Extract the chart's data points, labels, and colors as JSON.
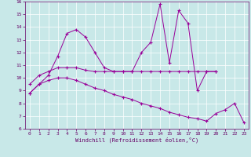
{
  "title": "",
  "xlabel": "Windchill (Refroidissement éolien,°C)",
  "bg_color": "#c8e8e8",
  "grid_color": "#ffffff",
  "line_color": "#990099",
  "x": [
    0,
    1,
    2,
    3,
    4,
    5,
    6,
    7,
    8,
    9,
    10,
    11,
    12,
    13,
    14,
    15,
    16,
    17,
    18,
    19,
    20,
    21,
    22,
    23
  ],
  "line1": [
    8.8,
    9.5,
    10.2,
    11.7,
    13.5,
    13.8,
    13.2,
    12.0,
    10.8,
    10.5,
    10.5,
    10.5,
    12.0,
    12.8,
    15.8,
    11.2,
    15.3,
    14.3,
    9.0,
    10.5,
    10.5,
    null,
    null,
    null
  ],
  "line2": [
    9.5,
    10.2,
    10.5,
    10.8,
    10.8,
    10.8,
    10.6,
    10.5,
    10.5,
    10.5,
    10.5,
    10.5,
    10.5,
    10.5,
    10.5,
    10.5,
    10.5,
    10.5,
    10.5,
    10.5,
    10.5,
    null,
    null,
    null
  ],
  "line3": [
    8.8,
    9.5,
    9.8,
    10.0,
    10.0,
    9.8,
    9.5,
    9.2,
    9.0,
    8.7,
    8.5,
    8.3,
    8.0,
    7.8,
    7.6,
    7.3,
    7.1,
    6.9,
    6.8,
    6.6,
    7.2,
    7.5,
    8.0,
    6.5
  ],
  "ylim": [
    6,
    16
  ],
  "xlim": [
    -0.5,
    23.5
  ],
  "yticks": [
    6,
    7,
    8,
    9,
    10,
    11,
    12,
    13,
    14,
    15,
    16
  ],
  "xticks": [
    0,
    1,
    2,
    3,
    4,
    5,
    6,
    7,
    8,
    9,
    10,
    11,
    12,
    13,
    14,
    15,
    16,
    17,
    18,
    19,
    20,
    21,
    22,
    23
  ]
}
